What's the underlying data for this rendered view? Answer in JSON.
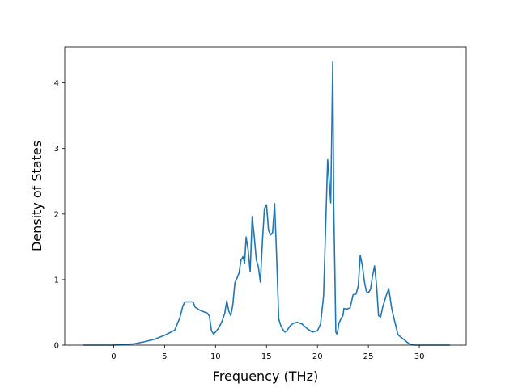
{
  "chart_data": {
    "type": "line",
    "title": "",
    "xlabel": "Frequency (THz)",
    "ylabel": "Density of States",
    "xlim": [
      -4.8,
      34.6
    ],
    "ylim": [
      0,
      4.55
    ],
    "xticks": [
      0,
      5,
      10,
      15,
      20,
      25,
      30
    ],
    "yticks": [
      0,
      1,
      2,
      3,
      4
    ],
    "grid": false,
    "legend": "none",
    "series": [
      {
        "color": "#1f77b4",
        "x": [
          -3.0,
          -2.0,
          -1.0,
          0.0,
          1.0,
          2.0,
          3.0,
          4.0,
          5.0,
          5.5,
          6.0,
          6.5,
          6.8,
          7.0,
          7.5,
          7.8,
          8.0,
          8.5,
          9.0,
          9.2,
          9.4,
          9.6,
          9.8,
          10.0,
          10.3,
          10.6,
          10.9,
          11.1,
          11.3,
          11.5,
          11.7,
          11.9,
          12.1,
          12.3,
          12.5,
          12.7,
          12.85,
          13.0,
          13.2,
          13.4,
          13.6,
          13.8,
          14.0,
          14.2,
          14.4,
          14.6,
          14.8,
          15.0,
          15.2,
          15.4,
          15.6,
          15.8,
          16.0,
          16.2,
          16.4,
          16.6,
          16.8,
          17.0,
          17.3,
          17.6,
          18.0,
          18.5,
          19.0,
          19.5,
          20.0,
          20.3,
          20.6,
          21.0,
          21.3,
          21.5,
          21.6,
          21.7,
          21.8,
          21.9,
          22.0,
          22.1,
          22.3,
          22.5,
          22.6,
          22.9,
          23.2,
          23.5,
          23.8,
          24.0,
          24.2,
          24.4,
          24.6,
          24.8,
          25.0,
          25.2,
          25.4,
          25.6,
          25.8,
          26.0,
          26.2,
          26.4,
          26.6,
          26.8,
          27.0,
          27.3,
          27.6,
          27.9,
          28.2,
          28.6,
          29.0,
          29.5,
          30.0,
          30.5,
          31.0,
          32.0,
          33.0
        ],
        "y": [
          0.0,
          0.0,
          0.0,
          0.0,
          0.01,
          0.02,
          0.05,
          0.09,
          0.15,
          0.19,
          0.23,
          0.42,
          0.6,
          0.66,
          0.66,
          0.66,
          0.58,
          0.53,
          0.5,
          0.49,
          0.44,
          0.22,
          0.17,
          0.2,
          0.26,
          0.35,
          0.48,
          0.68,
          0.52,
          0.45,
          0.62,
          0.95,
          1.02,
          1.1,
          1.3,
          1.35,
          1.25,
          1.65,
          1.45,
          1.12,
          1.96,
          1.65,
          1.3,
          1.2,
          0.96,
          1.58,
          2.08,
          2.14,
          1.75,
          1.68,
          1.72,
          2.16,
          1.35,
          0.4,
          0.3,
          0.24,
          0.2,
          0.22,
          0.29,
          0.33,
          0.35,
          0.32,
          0.25,
          0.2,
          0.22,
          0.32,
          0.75,
          2.83,
          2.17,
          4.32,
          2.12,
          1.2,
          0.2,
          0.17,
          0.22,
          0.33,
          0.4,
          0.45,
          0.56,
          0.55,
          0.57,
          0.77,
          0.78,
          0.9,
          1.37,
          1.22,
          0.98,
          0.82,
          0.8,
          0.85,
          1.05,
          1.21,
          0.92,
          0.45,
          0.43,
          0.58,
          0.68,
          0.78,
          0.86,
          0.55,
          0.35,
          0.16,
          0.12,
          0.07,
          0.02,
          0.0,
          0.0,
          0.0,
          0.0,
          0.0,
          0.0
        ]
      }
    ]
  }
}
